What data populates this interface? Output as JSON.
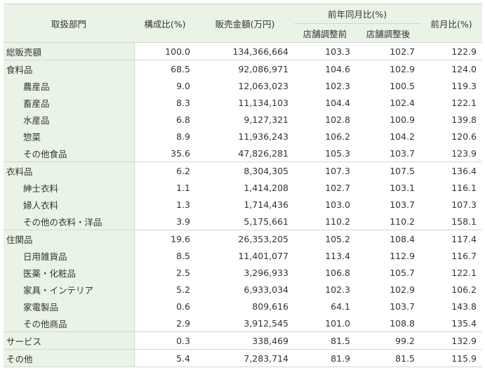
{
  "headers": {
    "dept": "取扱部門",
    "ratio": "構成比(%)",
    "sales": "販売金額(万円)",
    "yoy": "前年同月比(%)",
    "yoy_before": "店舗調整前",
    "yoy_after": "店舗調整後",
    "mom": "前月比(%)"
  },
  "rows": [
    {
      "name": "総販売額",
      "ratio": "100.0",
      "sales": "134,366,664",
      "before": "103.3",
      "after": "102.7",
      "mom": "122.9",
      "sub": false,
      "group": true
    },
    {
      "name": "食料品",
      "ratio": "68.5",
      "sales": "92,086,971",
      "before": "104.6",
      "after": "102.9",
      "mom": "124.0",
      "sub": false,
      "group": true
    },
    {
      "name": "農産品",
      "ratio": "9.0",
      "sales": "12,063,023",
      "before": "102.3",
      "after": "100.5",
      "mom": "119.3",
      "sub": true,
      "group": false
    },
    {
      "name": "畜産品",
      "ratio": "8.3",
      "sales": "11,134,103",
      "before": "104.4",
      "after": "102.4",
      "mom": "122.1",
      "sub": true,
      "group": false
    },
    {
      "name": "水産品",
      "ratio": "6.8",
      "sales": "9,127,321",
      "before": "102.8",
      "after": "100.9",
      "mom": "139.8",
      "sub": true,
      "group": false
    },
    {
      "name": "惣菜",
      "ratio": "8.9",
      "sales": "11,936,243",
      "before": "106.2",
      "after": "104.2",
      "mom": "120.6",
      "sub": true,
      "group": false
    },
    {
      "name": "その他食品",
      "ratio": "35.6",
      "sales": "47,826,281",
      "before": "105.3",
      "after": "103.7",
      "mom": "123.9",
      "sub": true,
      "group": false
    },
    {
      "name": "衣料品",
      "ratio": "6.2",
      "sales": "8,304,305",
      "before": "107.3",
      "after": "107.5",
      "mom": "136.4",
      "sub": false,
      "group": true
    },
    {
      "name": "紳士衣料",
      "ratio": "1.1",
      "sales": "1,414,208",
      "before": "102.7",
      "after": "103.1",
      "mom": "116.1",
      "sub": true,
      "group": false
    },
    {
      "name": "婦人衣料",
      "ratio": "1.3",
      "sales": "1,714,436",
      "before": "103.0",
      "after": "103.7",
      "mom": "107.3",
      "sub": true,
      "group": false
    },
    {
      "name": "その他の衣料・洋品",
      "ratio": "3.9",
      "sales": "5,175,661",
      "before": "110.2",
      "after": "110.2",
      "mom": "158.1",
      "sub": true,
      "group": false
    },
    {
      "name": "住関品",
      "ratio": "19.6",
      "sales": "26,353,205",
      "before": "105.2",
      "after": "108.4",
      "mom": "117.4",
      "sub": false,
      "group": true
    },
    {
      "name": "日用雑貨品",
      "ratio": "8.5",
      "sales": "11,401,077",
      "before": "113.4",
      "after": "112.9",
      "mom": "116.7",
      "sub": true,
      "group": false
    },
    {
      "name": "医薬・化粧品",
      "ratio": "2.5",
      "sales": "3,296,933",
      "before": "106.8",
      "after": "105.7",
      "mom": "122.1",
      "sub": true,
      "group": false
    },
    {
      "name": "家具・インテリア",
      "ratio": "5.2",
      "sales": "6,933,034",
      "before": "102.3",
      "after": "102.9",
      "mom": "106.2",
      "sub": true,
      "group": false
    },
    {
      "name": "家電製品",
      "ratio": "0.6",
      "sales": "809,616",
      "before": "64.1",
      "after": "103.7",
      "mom": "143.8",
      "sub": true,
      "group": false
    },
    {
      "name": "その他商品",
      "ratio": "2.9",
      "sales": "3,912,545",
      "before": "101.0",
      "after": "108.8",
      "mom": "135.4",
      "sub": true,
      "group": false
    },
    {
      "name": "サービス",
      "ratio": "0.3",
      "sales": "338,469",
      "before": "81.5",
      "after": "99.2",
      "mom": "132.9",
      "sub": false,
      "group": true
    },
    {
      "name": "その他",
      "ratio": "5.4",
      "sales": "7,283,714",
      "before": "81.9",
      "after": "81.5",
      "mom": "115.9",
      "sub": false,
      "group": true
    }
  ]
}
